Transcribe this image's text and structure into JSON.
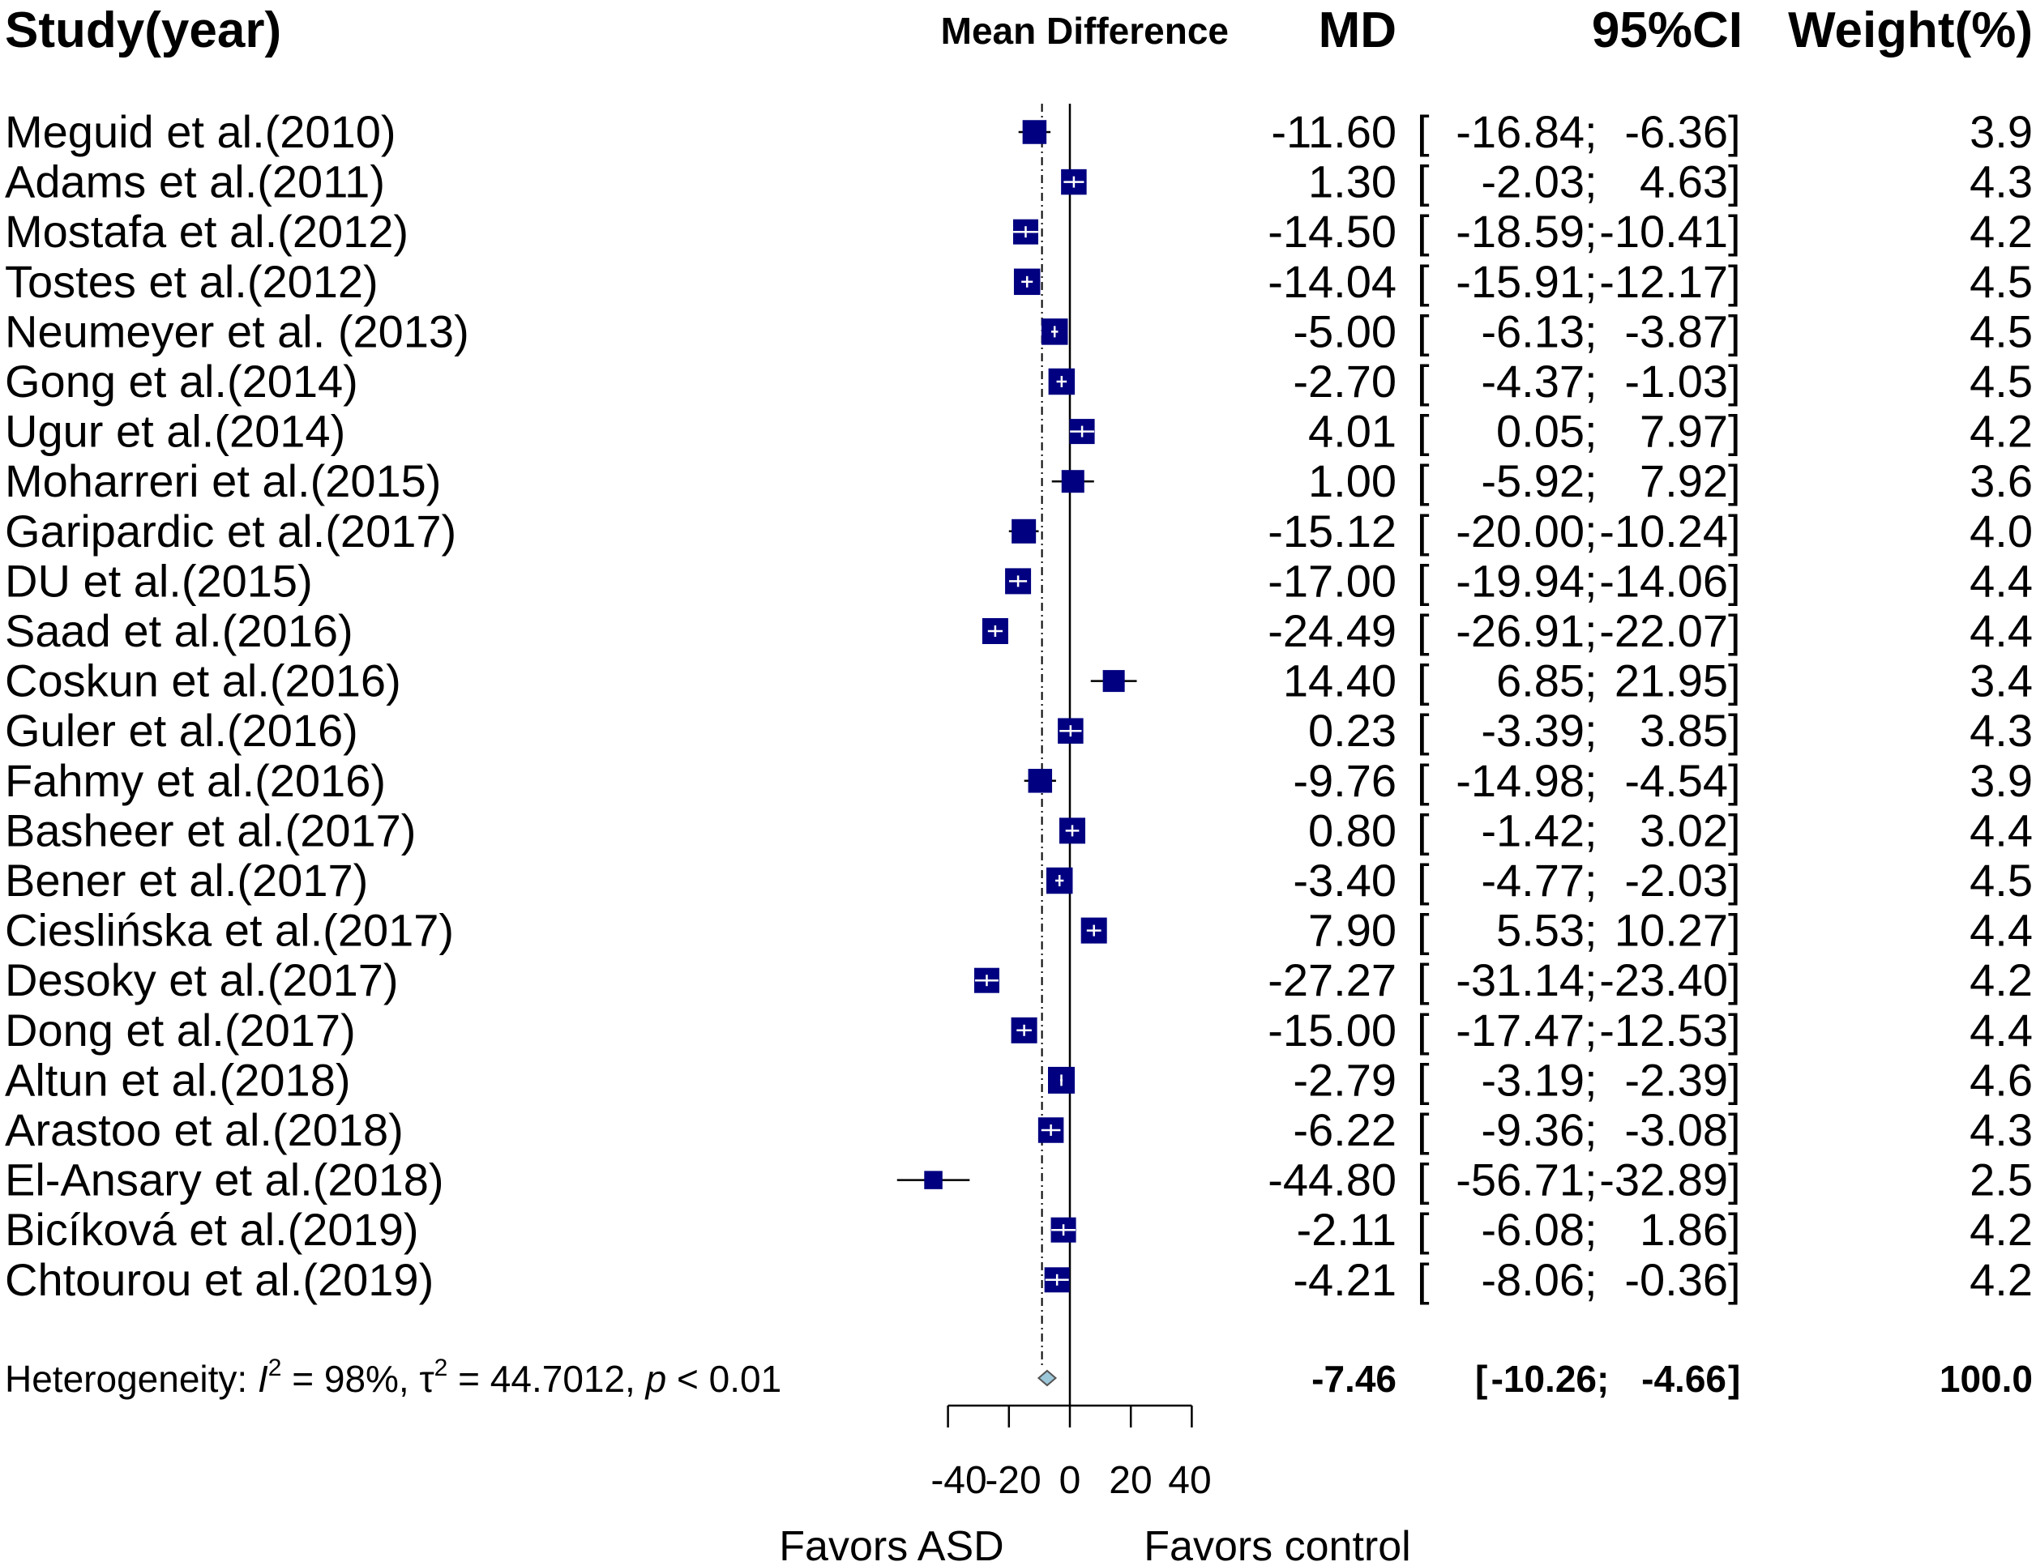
{
  "chart_data": {
    "type": "forest",
    "headers": {
      "study": "Study(year)",
      "effect": "Mean Difference",
      "md": "MD",
      "ci": "95%CI",
      "weight": "Weight(%)"
    },
    "studies": [
      {
        "name": "Meguid et al.(2010)",
        "md": -11.6,
        "lower": -16.84,
        "upper": -6.36,
        "weight": 3.9,
        "md_text": "-11.60",
        "lo_text": "-16.84",
        "hi_text": "-6.36",
        "w_text": "3.9"
      },
      {
        "name": "Adams et al.(2011)",
        "md": 1.3,
        "lower": -2.03,
        "upper": 4.63,
        "weight": 4.3,
        "md_text": "1.30",
        "lo_text": "-2.03",
        "hi_text": "4.63",
        "w_text": "4.3"
      },
      {
        "name": "Mostafa et al.(2012)",
        "md": -14.5,
        "lower": -18.59,
        "upper": -10.41,
        "weight": 4.2,
        "md_text": "-14.50",
        "lo_text": "-18.59",
        "hi_text": "-10.41",
        "w_text": "4.2"
      },
      {
        "name": "Tostes et al.(2012)",
        "md": -14.04,
        "lower": -15.91,
        "upper": -12.17,
        "weight": 4.5,
        "md_text": "-14.04",
        "lo_text": "-15.91",
        "hi_text": "-12.17",
        "w_text": "4.5"
      },
      {
        "name": "Neumeyer et al. (2013)",
        "md": -5.0,
        "lower": -6.13,
        "upper": -3.87,
        "weight": 4.5,
        "md_text": "-5.00",
        "lo_text": "-6.13",
        "hi_text": "-3.87",
        "w_text": "4.5"
      },
      {
        "name": "Gong et al.(2014)",
        "md": -2.7,
        "lower": -4.37,
        "upper": -1.03,
        "weight": 4.5,
        "md_text": "-2.70",
        "lo_text": "-4.37",
        "hi_text": "-1.03",
        "w_text": "4.5"
      },
      {
        "name": "Ugur et al.(2014)",
        "md": 4.01,
        "lower": 0.05,
        "upper": 7.97,
        "weight": 4.2,
        "md_text": "4.01",
        "lo_text": "0.05",
        "hi_text": "7.97",
        "w_text": "4.2"
      },
      {
        "name": "Moharreri et al.(2015)",
        "md": 1.0,
        "lower": -5.92,
        "upper": 7.92,
        "weight": 3.6,
        "md_text": "1.00",
        "lo_text": "-5.92",
        "hi_text": "7.92",
        "w_text": "3.6"
      },
      {
        "name": "Garipardic et al.(2017)",
        "md": -15.12,
        "lower": -20.0,
        "upper": -10.24,
        "weight": 4.0,
        "md_text": "-15.12",
        "lo_text": "-20.00",
        "hi_text": "-10.24",
        "w_text": "4.0"
      },
      {
        "name": "DU et al.(2015)",
        "md": -17.0,
        "lower": -19.94,
        "upper": -14.06,
        "weight": 4.4,
        "md_text": "-17.00",
        "lo_text": "-19.94",
        "hi_text": "-14.06",
        "w_text": "4.4"
      },
      {
        "name": "Saad et al.(2016)",
        "md": -24.49,
        "lower": -26.91,
        "upper": -22.07,
        "weight": 4.4,
        "md_text": "-24.49",
        "lo_text": "-26.91",
        "hi_text": "-22.07",
        "w_text": "4.4"
      },
      {
        "name": "Coskun et al.(2016)",
        "md": 14.4,
        "lower": 6.85,
        "upper": 21.95,
        "weight": 3.4,
        "md_text": "14.40",
        "lo_text": "6.85",
        "hi_text": "21.95",
        "w_text": "3.4"
      },
      {
        "name": "Guler et al.(2016)",
        "md": 0.23,
        "lower": -3.39,
        "upper": 3.85,
        "weight": 4.3,
        "md_text": "0.23",
        "lo_text": "-3.39",
        "hi_text": "3.85",
        "w_text": "4.3"
      },
      {
        "name": "Fahmy et al.(2016)",
        "md": -9.76,
        "lower": -14.98,
        "upper": -4.54,
        "weight": 3.9,
        "md_text": "-9.76",
        "lo_text": "-14.98",
        "hi_text": "-4.54",
        "w_text": "3.9"
      },
      {
        "name": "Basheer et al.(2017)",
        "md": 0.8,
        "lower": -1.42,
        "upper": 3.02,
        "weight": 4.4,
        "md_text": "0.80",
        "lo_text": "-1.42",
        "hi_text": "3.02",
        "w_text": "4.4"
      },
      {
        "name": "Bener et al.(2017)",
        "md": -3.4,
        "lower": -4.77,
        "upper": -2.03,
        "weight": 4.5,
        "md_text": "-3.40",
        "lo_text": "-4.77",
        "hi_text": "-2.03",
        "w_text": "4.5"
      },
      {
        "name": "Cieslińska et al.(2017)",
        "md": 7.9,
        "lower": 5.53,
        "upper": 10.27,
        "weight": 4.4,
        "md_text": "7.90",
        "lo_text": "5.53",
        "hi_text": "10.27",
        "w_text": "4.4"
      },
      {
        "name": "Desoky et al.(2017)",
        "md": -27.27,
        "lower": -31.14,
        "upper": -23.4,
        "weight": 4.2,
        "md_text": "-27.27",
        "lo_text": "-31.14",
        "hi_text": "-23.40",
        "w_text": "4.2"
      },
      {
        "name": "Dong et al.(2017)",
        "md": -15.0,
        "lower": -17.47,
        "upper": -12.53,
        "weight": 4.4,
        "md_text": "-15.00",
        "lo_text": "-17.47",
        "hi_text": "-12.53",
        "w_text": "4.4"
      },
      {
        "name": "Altun et al.(2018)",
        "md": -2.79,
        "lower": -3.19,
        "upper": -2.39,
        "weight": 4.6,
        "md_text": "-2.79",
        "lo_text": "-3.19",
        "hi_text": "-2.39",
        "w_text": "4.6"
      },
      {
        "name": "Arastoo et al.(2018)",
        "md": -6.22,
        "lower": -9.36,
        "upper": -3.08,
        "weight": 4.3,
        "md_text": "-6.22",
        "lo_text": "-9.36",
        "hi_text": "-3.08",
        "w_text": "4.3"
      },
      {
        "name": "El-Ansary et al.(2018)",
        "md": -44.8,
        "lower": -56.71,
        "upper": -32.89,
        "weight": 2.5,
        "md_text": "-44.80",
        "lo_text": "-56.71",
        "hi_text": "-32.89",
        "w_text": "2.5"
      },
      {
        "name": "Bicíková et al.(2019)",
        "md": -2.11,
        "lower": -6.08,
        "upper": 1.86,
        "weight": 4.2,
        "md_text": "-2.11",
        "lo_text": "-6.08",
        "hi_text": "1.86",
        "w_text": "4.2"
      },
      {
        "name": "Chtourou et al.(2019)",
        "md": -4.21,
        "lower": -8.06,
        "upper": -0.36,
        "weight": 4.2,
        "md_text": "-4.21",
        "lo_text": "-8.06",
        "hi_text": "-0.36",
        "w_text": "4.2"
      }
    ],
    "pooled": {
      "md": -7.46,
      "lower": -10.26,
      "upper": -4.66,
      "weight": 100.0,
      "md_text": "-7.46",
      "lo_text": "-10.26",
      "hi_text": "-4.66",
      "w_text": "100.0"
    },
    "heterogeneity": {
      "label": "Heterogeneity: ",
      "i2_symbol": "I",
      "i2_value": " = 98%, ",
      "tau_symbol": "τ",
      "tau_value": " = 44.7012, ",
      "p_symbol": "p",
      "p_value": " < 0.01",
      "superscript": "2"
    },
    "xaxis": {
      "ticks": [
        -40,
        -20,
        0,
        20,
        40
      ],
      "tick_labels": [
        "-40",
        "-20",
        "0",
        "20",
        "40"
      ],
      "range": [
        -40,
        40
      ]
    },
    "favors": {
      "left": "Favors ASD",
      "right": "Favors control"
    },
    "colors": {
      "square": "#000080",
      "ci_line": "#000000",
      "diamond_fill": "#9cc7d8",
      "diamond_stroke": "#555555",
      "whisker_inside": "#ffffff"
    }
  }
}
